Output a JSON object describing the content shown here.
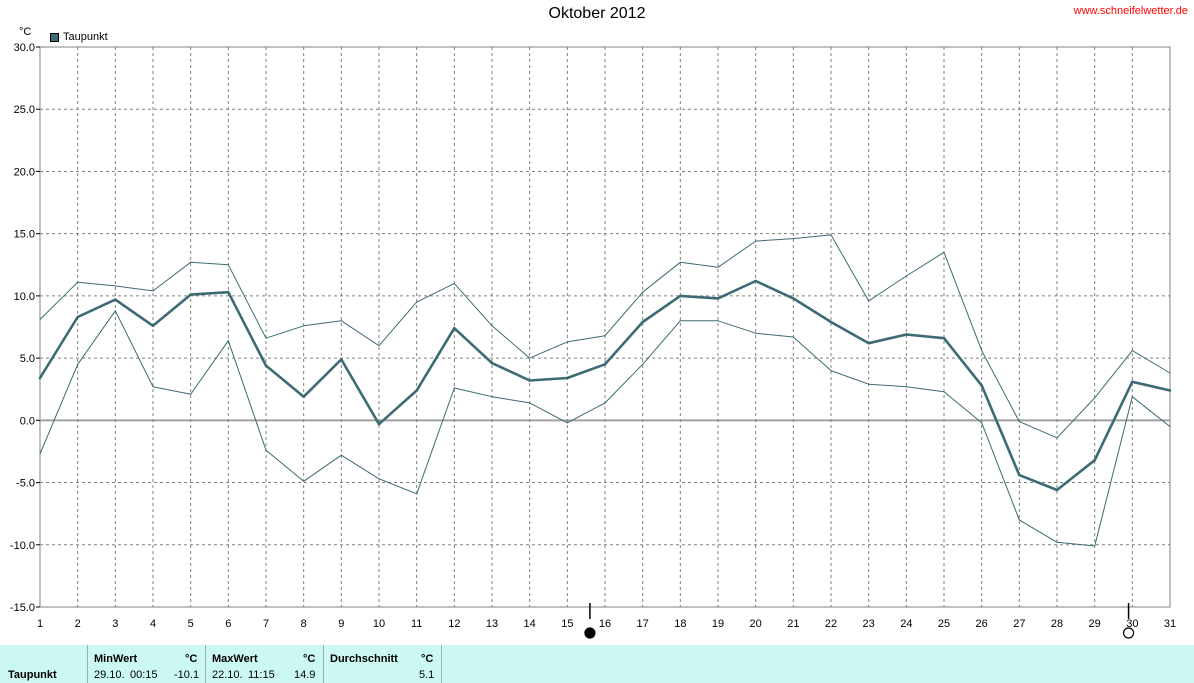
{
  "header": {
    "title": "Oktober 2012",
    "site": "www.schneifelwetter.de",
    "unit": "°C",
    "legend_label": "Taupunkt"
  },
  "colors": {
    "series": "#3d6b73",
    "grid": "#808080",
    "zero_line": "#a0a0a0",
    "stats_bg": "#ccf8f4",
    "site_link": "#ff0000"
  },
  "chart_data": {
    "type": "line",
    "title": "Oktober 2012",
    "ylabel": "°C",
    "ylim": [
      -15,
      30
    ],
    "y_ticks": [
      "30.0",
      "25.0",
      "20.0",
      "15.0",
      "10.0",
      "5.0",
      "0.0",
      "-5.0",
      "-10.0",
      "-15.0"
    ],
    "x": [
      1,
      2,
      3,
      4,
      5,
      6,
      7,
      8,
      9,
      10,
      11,
      12,
      13,
      14,
      15,
      16,
      17,
      18,
      19,
      20,
      21,
      22,
      23,
      24,
      25,
      26,
      27,
      28,
      29,
      30,
      31
    ],
    "x_ticks": [
      "1",
      "2",
      "3",
      "4",
      "5",
      "6",
      "7",
      "8",
      "9",
      "10",
      "11",
      "12",
      "13",
      "14",
      "15",
      "16",
      "17",
      "18",
      "19",
      "20",
      "21",
      "22",
      "23",
      "24",
      "25",
      "26",
      "27",
      "28",
      "29",
      "30",
      "31"
    ],
    "grid": true,
    "legend_placement": "top-left",
    "series": [
      {
        "name": "Taupunkt",
        "role": "mean",
        "values": [
          3.4,
          8.3,
          9.7,
          7.6,
          10.1,
          10.3,
          4.4,
          1.9,
          4.9,
          -0.3,
          2.4,
          7.4,
          4.6,
          3.2,
          3.4,
          4.5,
          7.9,
          10.0,
          9.8,
          11.2,
          9.8,
          7.9,
          6.2,
          6.9,
          6.6,
          2.8,
          -4.4,
          -5.6,
          -3.2,
          3.1,
          2.4
        ]
      },
      {
        "role": "max",
        "values": [
          8.1,
          11.1,
          10.8,
          10.4,
          12.7,
          12.5,
          6.6,
          7.6,
          8.0,
          6.0,
          9.5,
          11.0,
          7.6,
          5.0,
          6.3,
          6.8,
          10.3,
          12.7,
          12.3,
          14.4,
          14.6,
          14.9,
          9.6,
          11.6,
          13.5,
          5.6,
          -0.1,
          -1.4,
          1.8,
          5.6,
          3.8
        ]
      },
      {
        "role": "min",
        "values": [
          -2.7,
          4.5,
          8.8,
          2.7,
          2.1,
          6.4,
          -2.4,
          -4.9,
          -2.8,
          -4.7,
          -5.9,
          2.6,
          1.9,
          1.4,
          -0.2,
          1.4,
          4.5,
          8.0,
          8.0,
          7.0,
          6.7,
          4.0,
          2.9,
          2.7,
          2.3,
          -0.2,
          -8.0,
          -9.8,
          -10.1,
          1.9,
          -0.5
        ]
      }
    ],
    "moon_phases": [
      {
        "day": 15.6,
        "phase": "new"
      },
      {
        "day": 29.9,
        "phase": "full"
      }
    ]
  },
  "stats": {
    "row_label": "Taupunkt",
    "min": {
      "header": "MinWert",
      "unit": "°C",
      "date": "29.10.",
      "time": "00:15",
      "value": "-10.1"
    },
    "max": {
      "header": "MaxWert",
      "unit": "°C",
      "date": "22.10.",
      "time": "11:15",
      "value": "14.9"
    },
    "avg": {
      "header": "Durchschnitt",
      "unit": "°C",
      "value": "5.1"
    }
  }
}
